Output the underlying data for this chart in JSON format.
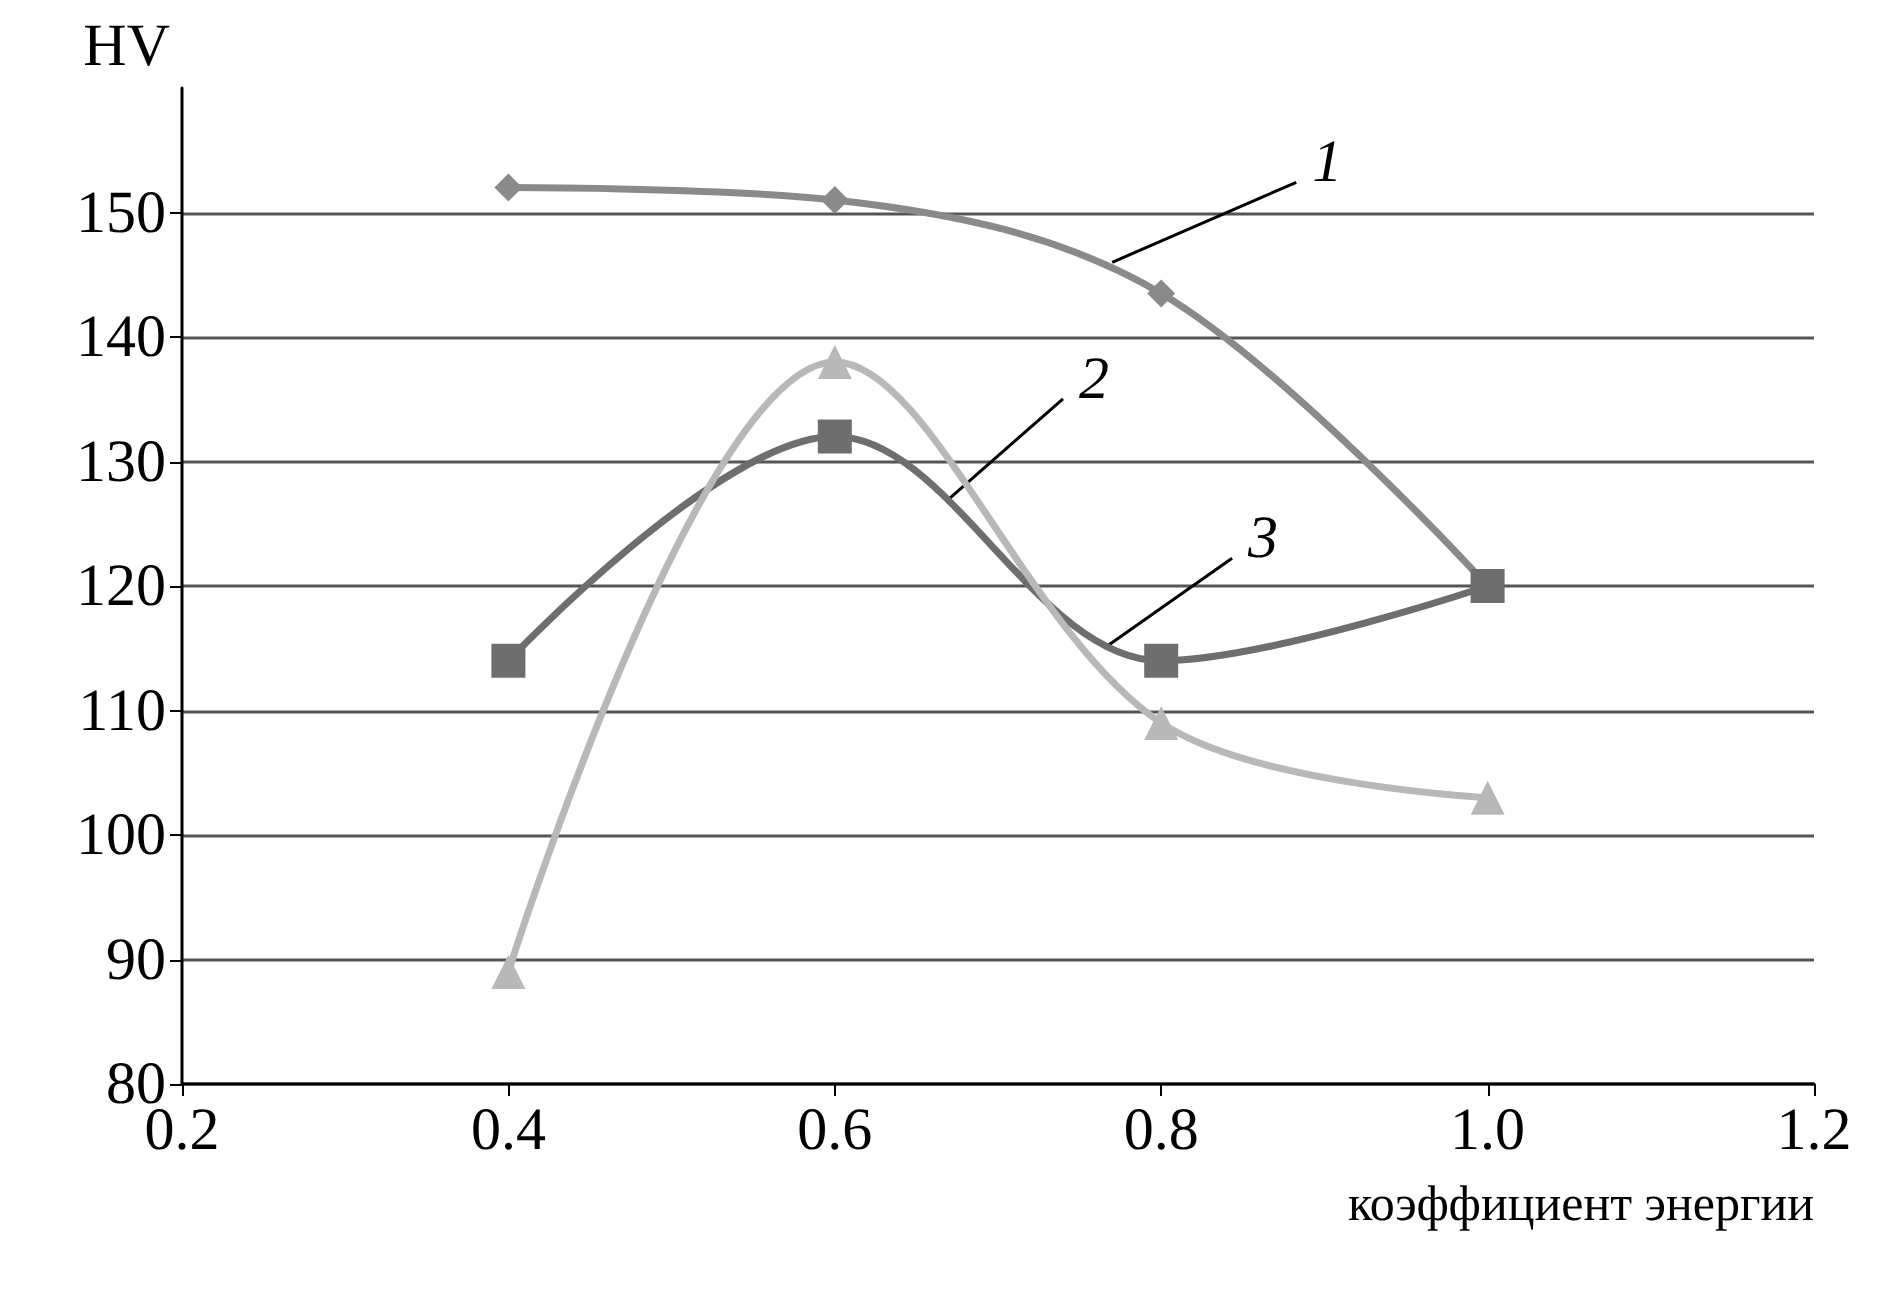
{
  "chart_data": {
    "type": "line",
    "ylabel": "HV",
    "xlabel": "коэффициент энергии",
    "xlim": [
      0.2,
      1.2
    ],
    "xticks": [
      {
        "value": 0.2,
        "label": "0.2"
      },
      {
        "value": 0.4,
        "label": "0.4"
      },
      {
        "value": 0.6,
        "label": "0.6"
      },
      {
        "value": 0.8,
        "label": "0.8"
      },
      {
        "value": 1,
        "label": "1.0"
      },
      {
        "value": 1.2,
        "label": "1.2"
      }
    ],
    "ylim": [
      80,
      160
    ],
    "yticks": [
      80,
      90,
      100,
      110,
      120,
      130,
      140,
      150
    ],
    "grid": "y",
    "x": [
      0.4,
      0.6,
      0.8,
      1.0
    ],
    "series": [
      {
        "color": "#8a8a8a",
        "marker": "diamond",
        "values": [
          152,
          151,
          143.5,
          120
        ]
      },
      {
        "color": "#6e6e6e",
        "marker": "square",
        "values": [
          114,
          132,
          114,
          120
        ]
      },
      {
        "color": "#b8b8b8",
        "marker": "triangle",
        "values": [
          89,
          138,
          109,
          103
        ]
      }
    ],
    "annotations": [
      {
        "text": "1",
        "x": 0.77,
        "y": 146
      },
      {
        "text": "2",
        "x": 0.67,
        "y": 127
      },
      {
        "text": "3",
        "x": 0.765,
        "y": 115
      }
    ]
  }
}
